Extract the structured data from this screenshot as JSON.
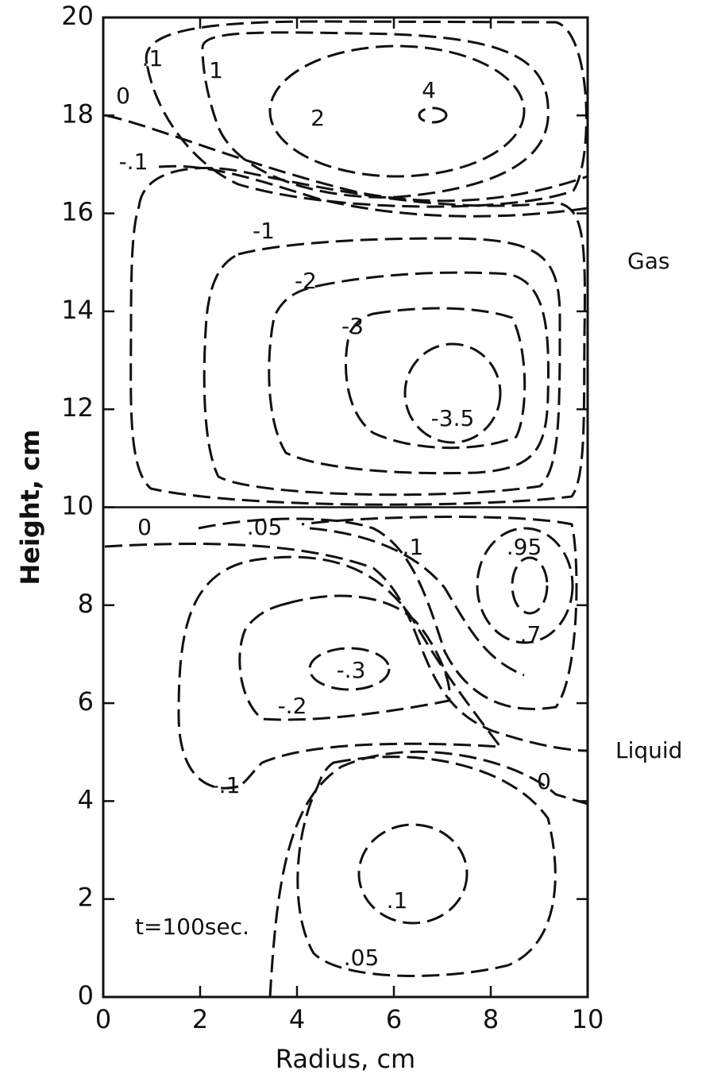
{
  "chart_data": {
    "type": "contour",
    "xlabel": "Radius, cm",
    "ylabel": "Height, cm",
    "xlim": [
      0,
      10
    ],
    "ylim": [
      0,
      20
    ],
    "xticks": [
      0,
      2,
      4,
      6,
      8,
      10
    ],
    "yticks": [
      0,
      2,
      4,
      6,
      8,
      10,
      12,
      14,
      16,
      18,
      20
    ],
    "interface": 10,
    "region_labels": [
      "Gas",
      "Liquid"
    ],
    "note": "t=100sec.",
    "annotations": [
      "4",
      "2",
      "1",
      ".1",
      "0",
      "-.1",
      "-1",
      "-2",
      "-3",
      "-3.5",
      "0",
      ".05",
      ".1",
      ".95",
      ".7",
      "-.3",
      "-.2",
      "-.1",
      "0",
      ".1",
      ".05"
    ]
  }
}
